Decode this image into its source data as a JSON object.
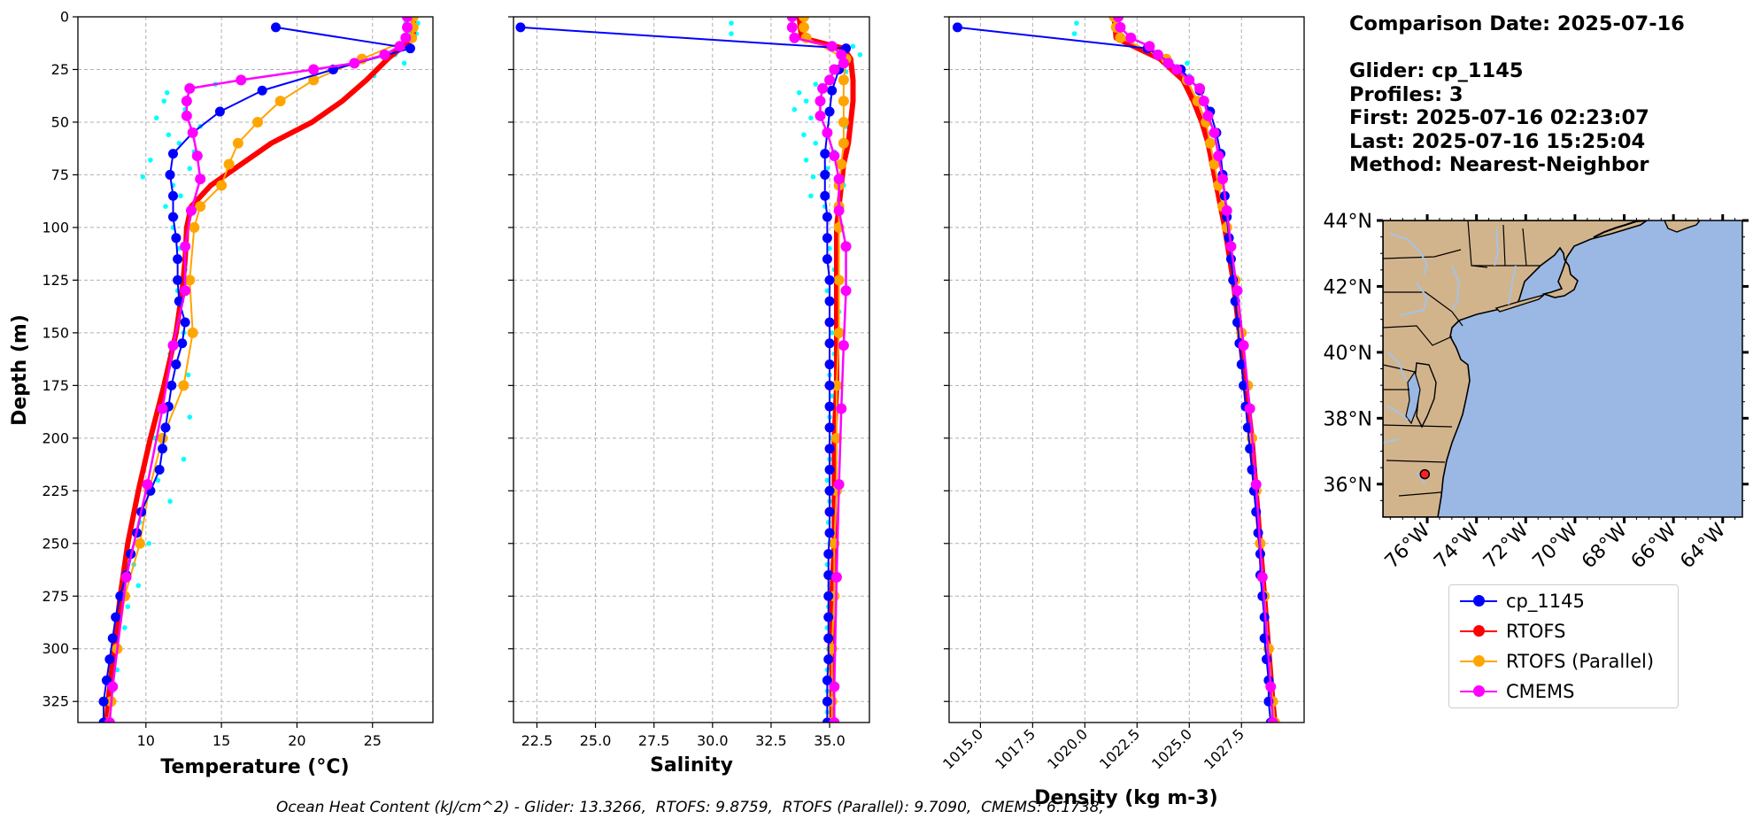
{
  "info": {
    "comparison_date": "Comparison Date: 2025-07-16",
    "glider": "Glider: cp_1145",
    "profiles": "Profiles: 3",
    "first": "First: 2025-07-16 02:23:07",
    "last": "Last: 2025-07-16 15:25:04",
    "method": "Method: Nearest-Neighbor"
  },
  "ohc_text": "Ocean Heat Content (kJ/cm^2) - Glider: 13.3266,  RTOFS: 9.8759,  RTOFS (Parallel): 9.7090,  CMEMS: 6.1738,",
  "colors": {
    "glider": "#0000ff",
    "rtofs": "#ff0000",
    "rtofs_parallel": "#ffa500",
    "cmems": "#ff00ff",
    "raw_points": "#00ffff",
    "ocean": "#9ab8e3",
    "land": "#d2b48c",
    "rivers": "#a7c2e4",
    "glider_position": "#ff2020"
  },
  "legend": [
    {
      "key": "glider",
      "label": "cp_1145"
    },
    {
      "key": "rtofs",
      "label": "RTOFS"
    },
    {
      "key": "rtofs_parallel",
      "label": "RTOFS (Parallel)"
    },
    {
      "key": "cmems",
      "label": "CMEMS"
    }
  ],
  "chart_data": [
    {
      "type": "line",
      "title": "",
      "xlabel": "Temperature (°C)",
      "ylabel": "Depth (m)",
      "xlim": [
        5.5,
        29
      ],
      "ylim": [
        335,
        0
      ],
      "y_inverted": true,
      "grid": true,
      "xticks": [
        10,
        15,
        20,
        25
      ],
      "yticks": [
        0,
        25,
        50,
        75,
        100,
        125,
        150,
        175,
        200,
        225,
        250,
        275,
        300,
        325
      ],
      "series": [
        {
          "name": "cp_1145",
          "key": "glider",
          "marker": true,
          "depth": [
            5,
            15,
            25,
            35,
            45,
            55,
            65,
            75,
            85,
            95,
            105,
            115,
            125,
            135,
            145,
            155,
            165,
            175,
            185,
            195,
            205,
            215,
            225,
            235,
            245,
            255,
            265,
            275,
            285,
            295,
            305,
            315,
            325,
            335
          ],
          "values": [
            18.6,
            27.5,
            22.4,
            17.7,
            14.9,
            13.1,
            11.8,
            11.6,
            11.8,
            11.8,
            12.0,
            12.1,
            12.1,
            12.2,
            12.6,
            12.4,
            12.0,
            11.7,
            11.5,
            11.3,
            11.1,
            10.9,
            10.3,
            9.7,
            9.4,
            9.0,
            8.7,
            8.3,
            8.0,
            7.8,
            7.6,
            7.4,
            7.2,
            7.2
          ]
        },
        {
          "name": "RTOFS",
          "key": "rtofs",
          "marker": false,
          "depth": [
            0,
            10,
            20,
            30,
            40,
            50,
            60,
            70,
            80,
            90,
            100,
            115,
            130,
            150,
            175,
            200,
            225,
            250,
            275,
            300,
            325,
            335
          ],
          "values": [
            27.7,
            27.7,
            26.0,
            24.6,
            23.0,
            21.0,
            18.3,
            16.3,
            14.3,
            13.0,
            12.7,
            12.6,
            12.4,
            12.0,
            11.2,
            10.3,
            9.5,
            8.8,
            8.3,
            7.9,
            7.5,
            7.4
          ]
        },
        {
          "name": "RTOFS (Parallel)",
          "key": "rtofs_parallel",
          "marker": true,
          "depth": [
            0,
            5,
            10,
            20,
            30,
            40,
            50,
            60,
            70,
            80,
            90,
            100,
            125,
            150,
            175,
            200,
            225,
            250,
            275,
            300,
            325,
            335
          ],
          "values": [
            27.7,
            27.7,
            27.6,
            24.3,
            21.1,
            18.9,
            17.4,
            16.1,
            15.5,
            15.0,
            13.6,
            13.2,
            12.9,
            13.1,
            12.5,
            11.1,
            10.2,
            9.6,
            8.6,
            8.1,
            7.7,
            7.5
          ]
        },
        {
          "name": "CMEMS",
          "key": "cmems",
          "marker": true,
          "depth": [
            0,
            5,
            10,
            14,
            18,
            22,
            25,
            30,
            34,
            40,
            47,
            55,
            66,
            77,
            92,
            109,
            130,
            156,
            186,
            222,
            266,
            318,
            335
          ],
          "values": [
            27.3,
            27.3,
            27.2,
            26.8,
            25.8,
            23.8,
            21.1,
            16.3,
            12.9,
            12.7,
            12.7,
            13.1,
            13.4,
            13.6,
            13.0,
            12.6,
            12.6,
            11.8,
            11.1,
            10.1,
            8.7,
            7.8,
            7.6
          ]
        },
        {
          "name": "",
          "key": "raw_points",
          "marker_only": true,
          "depth": [
            3,
            3,
            8,
            8,
            13,
            18,
            22,
            28,
            32,
            36,
            40,
            44,
            48,
            52,
            56,
            60,
            64,
            68,
            72,
            76,
            80,
            85,
            90,
            95,
            100,
            110,
            120,
            130,
            140,
            150,
            160,
            170,
            180,
            190,
            200,
            210,
            220,
            230,
            240,
            250,
            260,
            270,
            280,
            290,
            300,
            310,
            320,
            330
          ],
          "values": [
            27.2,
            28.0,
            27.5,
            27.9,
            26.9,
            26.5,
            27.1,
            25.1,
            14.6,
            11.4,
            11.2,
            12.6,
            10.7,
            13.6,
            11.5,
            12.2,
            13.2,
            10.3,
            12.9,
            9.8,
            11.8,
            12.3,
            11.3,
            12.0,
            11.8,
            12.2,
            12.6,
            12.1,
            12.3,
            12.5,
            11.6,
            12.8,
            11.1,
            12.9,
            10.6,
            12.5,
            10.8,
            11.6,
            9.6,
            10.2,
            9.2,
            9.5,
            8.8,
            8.6,
            8.2,
            8.1,
            7.8,
            7.5
          ]
        }
      ]
    },
    {
      "type": "line",
      "title": "",
      "xlabel": "Salinity",
      "ylabel": "",
      "xlim": [
        21.5,
        36.7
      ],
      "ylim": [
        335,
        0
      ],
      "y_inverted": true,
      "grid": true,
      "xticks": [
        22.5,
        25.0,
        27.5,
        30.0,
        32.5,
        35.0
      ],
      "series": [
        {
          "name": "cp_1145",
          "key": "glider",
          "marker": true,
          "depth": [
            5,
            15,
            25,
            35,
            45,
            55,
            65,
            75,
            85,
            95,
            105,
            115,
            125,
            135,
            145,
            155,
            165,
            175,
            185,
            195,
            205,
            215,
            225,
            235,
            245,
            255,
            265,
            275,
            285,
            295,
            305,
            315,
            325,
            335
          ],
          "values": [
            21.8,
            35.7,
            35.4,
            35.1,
            35.0,
            34.9,
            34.8,
            34.8,
            34.8,
            34.9,
            34.9,
            34.9,
            35.0,
            35.0,
            35.0,
            35.0,
            35.0,
            35.0,
            35.0,
            35.0,
            35.0,
            35.0,
            35.0,
            35.0,
            35.0,
            34.95,
            34.95,
            34.95,
            34.95,
            34.95,
            34.95,
            34.9,
            34.9,
            34.9
          ]
        },
        {
          "name": "RTOFS",
          "key": "rtofs",
          "marker": false,
          "depth": [
            0,
            10,
            15,
            20,
            30,
            40,
            50,
            60,
            70,
            80,
            90,
            100,
            125,
            150,
            175,
            200,
            225,
            250,
            275,
            300,
            325,
            335
          ],
          "values": [
            33.7,
            33.8,
            35.6,
            35.9,
            36.0,
            36.0,
            35.9,
            35.8,
            35.6,
            35.5,
            35.4,
            35.3,
            35.3,
            35.3,
            35.3,
            35.2,
            35.2,
            35.2,
            35.1,
            35.1,
            35.1,
            35.1
          ]
        },
        {
          "name": "RTOFS (Parallel)",
          "key": "rtofs_parallel",
          "marker": true,
          "depth": [
            0,
            5,
            10,
            20,
            30,
            40,
            50,
            60,
            70,
            80,
            90,
            100,
            125,
            150,
            175,
            200,
            225,
            250,
            275,
            300,
            325,
            335
          ],
          "values": [
            33.9,
            33.9,
            34.0,
            35.7,
            35.6,
            35.6,
            35.6,
            35.6,
            35.5,
            35.4,
            35.4,
            35.4,
            35.4,
            35.4,
            35.3,
            35.3,
            35.3,
            35.2,
            35.2,
            35.1,
            35.1,
            35.1
          ]
        },
        {
          "name": "CMEMS",
          "key": "cmems",
          "marker": true,
          "depth": [
            0,
            5,
            10,
            14,
            18,
            22,
            25,
            30,
            34,
            40,
            47,
            55,
            66,
            77,
            92,
            109,
            130,
            156,
            186,
            222,
            266,
            318,
            335
          ],
          "values": [
            33.4,
            33.4,
            33.5,
            35.1,
            35.5,
            35.6,
            35.2,
            35.0,
            34.7,
            34.6,
            34.6,
            34.9,
            35.2,
            35.4,
            35.4,
            35.7,
            35.7,
            35.6,
            35.5,
            35.4,
            35.3,
            35.2,
            35.2
          ]
        },
        {
          "name": "",
          "key": "raw_points",
          "marker_only": true,
          "depth": [
            3,
            8,
            14,
            18,
            22,
            26,
            32,
            36,
            40,
            44,
            48,
            52,
            56,
            60,
            64,
            68,
            72,
            76,
            80,
            85,
            90,
            100,
            110,
            120,
            130,
            140,
            150,
            160,
            170,
            180,
            190,
            200,
            210,
            220,
            230,
            240,
            250,
            260,
            270,
            280,
            290,
            300,
            310,
            320,
            330
          ],
          "values": [
            30.8,
            30.8,
            36.0,
            36.3,
            35.9,
            35.7,
            34.4,
            33.7,
            34.0,
            33.5,
            34.2,
            35.7,
            33.9,
            34.4,
            35.2,
            34.0,
            34.9,
            34.3,
            35.6,
            34.2,
            34.8,
            35.5,
            35.0,
            35.2,
            34.9,
            35.4,
            35.1,
            35.2,
            35.0,
            35.1,
            35.0,
            35.1,
            35.0,
            34.9,
            35.0,
            34.95,
            35.0,
            34.9,
            35.0,
            34.95,
            34.9,
            34.95,
            34.9,
            34.9,
            34.9
          ]
        }
      ]
    },
    {
      "type": "line",
      "title": "",
      "xlabel": "Density (kg m-3)",
      "ylabel": "",
      "xlim": [
        1013.5,
        1030.5
      ],
      "ylim": [
        335,
        0
      ],
      "y_inverted": true,
      "grid": true,
      "xticks": [
        1015.0,
        1017.5,
        1020.0,
        1022.5,
        1025.0,
        1027.5
      ],
      "series": [
        {
          "name": "cp_1145",
          "key": "glider",
          "marker": true,
          "depth": [
            5,
            15,
            25,
            35,
            45,
            55,
            65,
            75,
            85,
            95,
            105,
            115,
            125,
            135,
            145,
            155,
            165,
            175,
            185,
            195,
            205,
            215,
            225,
            235,
            245,
            255,
            265,
            275,
            285,
            295,
            305,
            315,
            325,
            335
          ],
          "values": [
            1013.9,
            1023.0,
            1024.6,
            1025.5,
            1026.0,
            1026.3,
            1026.5,
            1026.6,
            1026.7,
            1026.8,
            1026.9,
            1027.0,
            1027.1,
            1027.2,
            1027.3,
            1027.4,
            1027.5,
            1027.6,
            1027.7,
            1027.8,
            1027.9,
            1028.0,
            1028.1,
            1028.2,
            1028.3,
            1028.4,
            1028.4,
            1028.5,
            1028.6,
            1028.6,
            1028.7,
            1028.8,
            1028.8,
            1028.9
          ]
        },
        {
          "name": "RTOFS",
          "key": "rtofs",
          "marker": false,
          "depth": [
            0,
            10,
            20,
            30,
            40,
            50,
            60,
            70,
            80,
            90,
            100,
            125,
            150,
            175,
            200,
            225,
            250,
            275,
            300,
            325,
            335
          ],
          "values": [
            1021.4,
            1021.5,
            1023.6,
            1024.7,
            1025.2,
            1025.6,
            1025.9,
            1026.1,
            1026.3,
            1026.5,
            1026.7,
            1027.1,
            1027.4,
            1027.7,
            1028.0,
            1028.2,
            1028.4,
            1028.6,
            1028.8,
            1029.0,
            1029.1
          ]
        },
        {
          "name": "RTOFS (Parallel)",
          "key": "rtofs_parallel",
          "marker": true,
          "depth": [
            0,
            5,
            10,
            20,
            30,
            40,
            50,
            60,
            70,
            80,
            90,
            100,
            125,
            150,
            175,
            200,
            225,
            250,
            275,
            300,
            325,
            335
          ],
          "values": [
            1021.4,
            1021.5,
            1021.7,
            1023.9,
            1024.9,
            1025.4,
            1025.8,
            1026.0,
            1026.2,
            1026.4,
            1026.6,
            1026.8,
            1027.2,
            1027.5,
            1027.8,
            1028.0,
            1028.2,
            1028.4,
            1028.6,
            1028.8,
            1029.0,
            1029.1
          ]
        },
        {
          "name": "CMEMS",
          "key": "cmems",
          "marker": true,
          "depth": [
            0,
            5,
            10,
            14,
            18,
            22,
            25,
            30,
            34,
            40,
            47,
            55,
            66,
            77,
            92,
            109,
            130,
            156,
            186,
            222,
            266,
            318,
            335
          ],
          "values": [
            1021.6,
            1021.7,
            1022.2,
            1023.1,
            1023.5,
            1024.0,
            1024.4,
            1025.0,
            1025.5,
            1025.7,
            1025.9,
            1026.2,
            1026.4,
            1026.6,
            1026.8,
            1027.0,
            1027.3,
            1027.6,
            1027.9,
            1028.2,
            1028.5,
            1028.9,
            1029.0
          ]
        },
        {
          "name": "",
          "key": "raw_points",
          "marker_only": true,
          "depth": [
            3,
            8,
            14,
            22,
            28
          ],
          "values": [
            1019.6,
            1019.5,
            1023.2,
            1024.9,
            1025.0
          ]
        }
      ]
    }
  ],
  "map": {
    "lon_range": [
      -77.8,
      -63.2
    ],
    "lat_range": [
      35,
      44
    ],
    "xtick_labels": [
      "76°W",
      "74°W",
      "72°W",
      "70°W",
      "68°W",
      "66°W",
      "64°W"
    ],
    "xtick_lons": [
      -76,
      -74,
      -72,
      -70,
      -68,
      -66,
      -64
    ],
    "ytick_labels": [
      "44°N",
      "42°N",
      "40°N",
      "38°N",
      "36°N"
    ],
    "ytick_lats": [
      44,
      42,
      40,
      38,
      36
    ],
    "glider_position": {
      "lon": -76.1,
      "lat": 36.3
    }
  }
}
